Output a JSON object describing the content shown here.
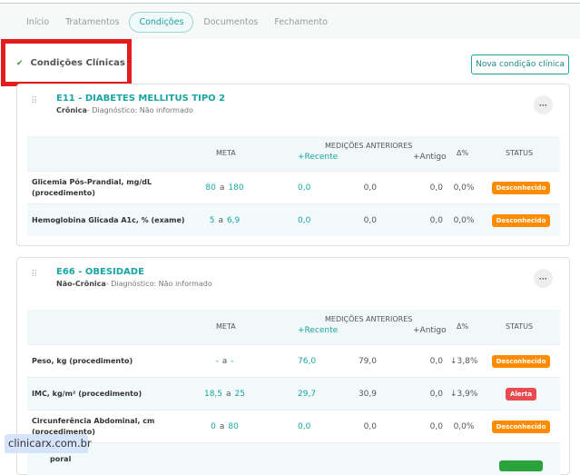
{
  "tabs": [
    "Início",
    "Tratamentos",
    "Condições",
    "Documentos",
    "Fechamento"
  ],
  "section": {
    "title": "Condições Clínicas",
    "new_button": "Nova condição clínica"
  },
  "headers": {
    "meta": "META",
    "previous": "MEDIÇÕES ANTERIORES",
    "recent": "+Recente",
    "oldest": "+Antigo",
    "delta": "Δ%",
    "status": "STATUS",
    "range_sep": "a"
  },
  "colors": {
    "accent": "#1aa3a3",
    "unknown": "#ff8c00",
    "alert": "#e84c50",
    "controlled": "#2aa33a",
    "highlight": "#e31c1c"
  },
  "conditions": [
    {
      "title": "E11 - DIABETES MELLITUS TIPO 2",
      "type": "Crônica",
      "diagnosis": "- Diagnóstico: Não informado",
      "rows": [
        {
          "label": "Glicemia Pós-Prandial, mg/dL (procedimento)",
          "min": "80",
          "max": "180",
          "recent": "0,0",
          "previous": "0,0",
          "oldest": "0,0",
          "delta": "0,0%",
          "status": "Desconhecido"
        },
        {
          "label": "Hemoglobina Glicada A1c, % (exame)",
          "min": "5",
          "max": "6,9",
          "recent": "0,0",
          "previous": "0,0",
          "oldest": "0,0",
          "delta": "0,0%",
          "status": "Desconhecido"
        }
      ]
    },
    {
      "title": "E66 - OBESIDADE",
      "type": "Não-Crônica",
      "diagnosis": "- Diagnóstico: Não informado",
      "rows": [
        {
          "label": "Peso, kg (procedimento)",
          "min": "-",
          "max": "-",
          "recent": "76,0",
          "previous": "79,0",
          "oldest": "0,0",
          "delta": "↓3,8%",
          "status": "Desconhecido"
        },
        {
          "label": "IMC, kg/m² (procedimento)",
          "min": "18,5",
          "max": "25",
          "recent": "29,7",
          "previous": "30,9",
          "oldest": "0,0",
          "delta": "↓3,9%",
          "status": "Alerta"
        },
        {
          "label": "Circunferência Abdominal, cm (procedimento)",
          "min": "0",
          "max": "80",
          "recent": "0,0",
          "previous": "0,0",
          "oldest": "0,0",
          "delta": "0,0%",
          "status": "Desconhecido"
        },
        {
          "label": "poral"
        }
      ]
    }
  ],
  "tooltip": "clinicarx.com.br"
}
